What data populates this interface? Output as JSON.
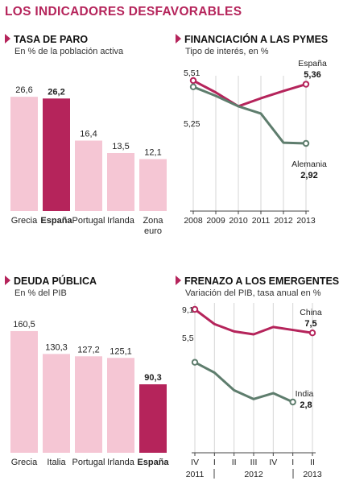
{
  "main_title": "LOS INDICADORES DESFAVORABLES",
  "chart_data": [
    {
      "type": "bar",
      "title": "TASA DE PARO",
      "subtitle": "En % de la población activa",
      "categories": [
        "Grecia",
        "España",
        "Portugal",
        "Irlanda",
        "Zona euro"
      ],
      "values": [
        26.6,
        26.2,
        16.4,
        13.5,
        12.1
      ],
      "value_labels": [
        "26,6",
        "26,2",
        "16,4",
        "13,5",
        "12,1"
      ],
      "highlight": "España",
      "colors": {
        "bar": "#f5c6d4",
        "highlight": "#b5245b"
      }
    },
    {
      "type": "line",
      "title": "FINANCIACIÓN A LAS PYMES",
      "subtitle": "Tipo de interés, en %",
      "x": [
        "2008",
        "2009",
        "2010",
        "2011",
        "2012",
        "2013"
      ],
      "series": [
        {
          "name": "España",
          "values": [
            5.51,
            5.02,
            4.45,
            4.78,
            5.08,
            5.36
          ],
          "end_label": "5,36",
          "start_label": "5,51",
          "color": "#b5245b"
        },
        {
          "name": "Alemania",
          "values": [
            5.25,
            4.88,
            4.45,
            4.15,
            2.95,
            2.92
          ],
          "end_label": "2,92",
          "start_label": "5,25",
          "color": "#5e7d6d"
        }
      ]
    },
    {
      "type": "bar",
      "title": "DEUDA PÚBLICA",
      "subtitle": "En % del PIB",
      "categories": [
        "Grecia",
        "Italia",
        "Portugal",
        "Irlanda",
        "España"
      ],
      "values": [
        160.5,
        130.3,
        127.2,
        125.1,
        90.3
      ],
      "value_labels": [
        "160,5",
        "130,3",
        "127,2",
        "125,1",
        "90,3"
      ],
      "highlight": "España",
      "colors": {
        "bar": "#f5c6d4",
        "highlight": "#b5245b"
      }
    },
    {
      "type": "line",
      "title": "FRENAZO A LOS EMERGENTES",
      "subtitle": "Variación del PIB, tasa anual en %",
      "x": [
        "IV",
        "I",
        "II",
        "III",
        "IV",
        "I",
        "II"
      ],
      "year_labels": [
        "2011",
        "2012",
        "2013"
      ],
      "series": [
        {
          "name": "China",
          "values": [
            9.1,
            8.1,
            7.6,
            7.4,
            7.9,
            7.7,
            7.5
          ],
          "end_label": "7,5",
          "start_label": "9,1",
          "color": "#b5245b"
        },
        {
          "name": "India",
          "values": [
            5.5,
            4.8,
            3.6,
            3.0,
            3.4,
            2.8,
            null
          ],
          "end_label": "2,8",
          "start_label": "5,5",
          "color": "#5e7d6d"
        }
      ]
    }
  ]
}
